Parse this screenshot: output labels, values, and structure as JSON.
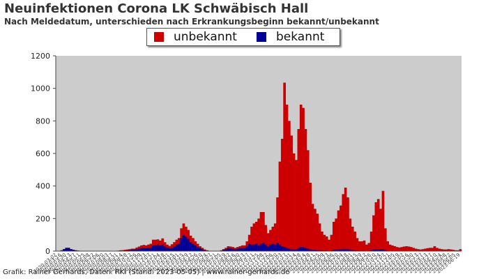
{
  "header": {
    "title": "Neuinfektionen Corona LK Schwäbisch Hall",
    "subtitle": "Nach Meldedatum, unterschieden nach Erkrankungsbeginn bekannt/unbekannt"
  },
  "legend": {
    "items": [
      {
        "label": "unbekannt",
        "color": "#cc0000"
      },
      {
        "label": "bekannt",
        "color": "#000099"
      }
    ]
  },
  "footer": {
    "credit": "Grafik: Rainer Gerhards, Daten: RKI (Stand: 2023-05-05) | www.rainer-gerhards.de"
  },
  "chart_data": {
    "type": "bar",
    "stacked": true,
    "plot_background": "#cccccc",
    "ylim": [
      0,
      1200
    ],
    "yticks": [
      0,
      200,
      400,
      600,
      800,
      1000,
      1200
    ],
    "x_start": "2020-03",
    "x_end": "2023-05",
    "x_interval": "weekly",
    "series": [
      {
        "name": "unbekannt",
        "color": "#cc0000",
        "values": [
          0,
          0,
          5,
          12,
          20,
          20,
          12,
          8,
          5,
          3,
          2,
          0,
          0,
          0,
          0,
          0,
          0,
          0,
          0,
          0,
          0,
          0,
          0,
          1,
          2,
          2,
          3,
          5,
          6,
          8,
          10,
          12,
          15,
          15,
          22,
          28,
          35,
          38,
          35,
          40,
          45,
          70,
          70,
          72,
          65,
          78,
          55,
          40,
          32,
          42,
          55,
          70,
          80,
          140,
          170,
          150,
          130,
          95,
          80,
          60,
          45,
          30,
          20,
          10,
          5,
          0,
          0,
          0,
          0,
          0,
          5,
          12,
          20,
          30,
          28,
          25,
          20,
          25,
          30,
          35,
          35,
          60,
          100,
          150,
          170,
          180,
          200,
          240,
          240,
          160,
          110,
          130,
          150,
          170,
          330,
          550,
          690,
          1035,
          900,
          800,
          710,
          600,
          560,
          750,
          900,
          880,
          750,
          620,
          420,
          290,
          260,
          230,
          170,
          120,
          100,
          90,
          70,
          100,
          180,
          200,
          250,
          280,
          350,
          390,
          330,
          200,
          150,
          120,
          80,
          60,
          60,
          65,
          40,
          50,
          120,
          220,
          300,
          320,
          260,
          370,
          140,
          60,
          40,
          35,
          30,
          25,
          22,
          25,
          28,
          30,
          28,
          25,
          20,
          15,
          12,
          10,
          12,
          15,
          18,
          20,
          20,
          30,
          20,
          15,
          12,
          10,
          10,
          12,
          10,
          8,
          5,
          5,
          12
        ]
      },
      {
        "name": "bekannt",
        "color": "#000099",
        "values": [
          0,
          0,
          5,
          12,
          20,
          20,
          12,
          8,
          5,
          3,
          2,
          0,
          0,
          0,
          0,
          0,
          0,
          0,
          0,
          0,
          0,
          0,
          0,
          1,
          1,
          1,
          2,
          3,
          3,
          4,
          5,
          6,
          8,
          8,
          12,
          15,
          18,
          20,
          18,
          20,
          22,
          35,
          38,
          40,
          35,
          40,
          30,
          22,
          18,
          22,
          30,
          40,
          45,
          80,
          100,
          90,
          75,
          55,
          45,
          35,
          25,
          18,
          12,
          6,
          3,
          0,
          0,
          0,
          0,
          0,
          3,
          8,
          12,
          18,
          16,
          14,
          12,
          14,
          18,
          20,
          20,
          30,
          45,
          40,
          40,
          45,
          35,
          45,
          50,
          40,
          30,
          40,
          45,
          40,
          50,
          40,
          30,
          25,
          20,
          15,
          12,
          10,
          10,
          20,
          25,
          25,
          20,
          15,
          10,
          8,
          8,
          6,
          5,
          5,
          4,
          4,
          3,
          4,
          8,
          10,
          10,
          12,
          14,
          14,
          12,
          8,
          6,
          5,
          4,
          3,
          3,
          3,
          2,
          3,
          6,
          10,
          12,
          12,
          10,
          12,
          6,
          3,
          2,
          2,
          2,
          1,
          1,
          1,
          1,
          1,
          1,
          1,
          1,
          1,
          1,
          1,
          1,
          1,
          1,
          1,
          1,
          1,
          1,
          1,
          1,
          1,
          1,
          1,
          1,
          1,
          0,
          0,
          1
        ]
      }
    ]
  }
}
